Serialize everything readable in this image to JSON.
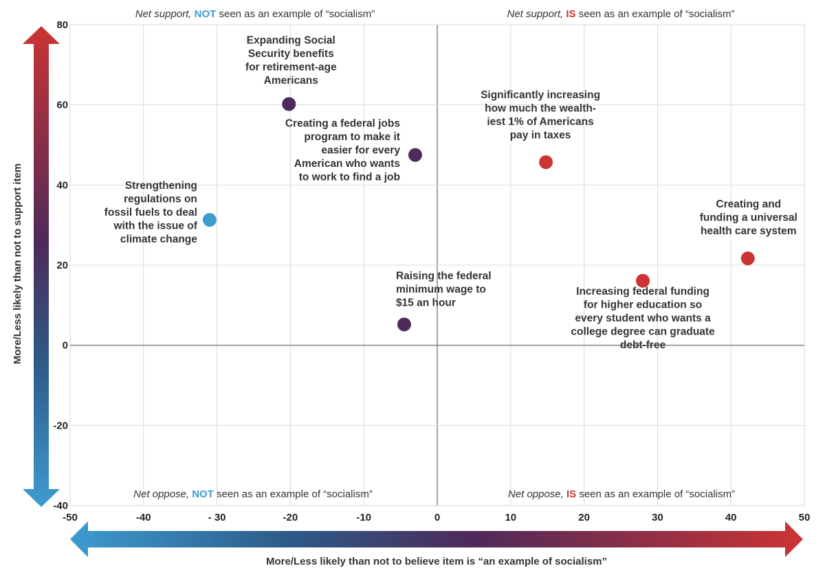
{
  "chart_data": {
    "type": "scatter",
    "xlabel": "More/Less likely than not to believe item is “an example of socialism”",
    "ylabel": "More/Less likely than not to support item",
    "xlim": [
      -50,
      50
    ],
    "ylim": [
      -40,
      80
    ],
    "x_ticks": [
      "-50",
      "-40",
      "- 30",
      "-20",
      "-10",
      "0",
      "10",
      "20",
      "30",
      "40",
      "50"
    ],
    "y_ticks": [
      "80",
      "60",
      "40",
      "20",
      "0",
      "-20",
      "-40"
    ],
    "grid": true,
    "quadrant_labels": {
      "top_left": {
        "lead": "Net support,",
        "key": "NOT",
        "rest": "seen as an example of “socialism”"
      },
      "top_right": {
        "lead": "Net support,",
        "key": "IS",
        "rest": "seen as an example of “socialism”"
      },
      "bottom_left": {
        "lead": "Net oppose,",
        "key": "NOT",
        "rest": "seen as an example of “socialism”"
      },
      "bottom_right": {
        "lead": "Net oppose,",
        "key": "IS",
        "rest": "seen as an example of “socialism”"
      }
    },
    "points": [
      {
        "x": -20.2,
        "y": 60.2,
        "color": "#4e2a5a",
        "label": [
          "Expanding Social",
          "Security benefits",
          "for retirement-age",
          "Americans"
        ]
      },
      {
        "x": -3,
        "y": 47.5,
        "color": "#4e2a5a",
        "label": [
          "Creating a federal jobs",
          "program to make it",
          "easier for every",
          "American who wants",
          "to work to find a job"
        ]
      },
      {
        "x": -31,
        "y": 31.3,
        "color": "#3d9bd0",
        "label": [
          "Strengthening",
          "regulations on",
          "fossil fuels to deal",
          "with the issue of",
          "climate change"
        ]
      },
      {
        "x": -4.5,
        "y": 5.2,
        "color": "#4e2a5a",
        "label": [
          "Raising the federal",
          "minimum wage to",
          "$15 an hour"
        ]
      },
      {
        "x": 14.8,
        "y": 45.7,
        "color": "#cc3433",
        "label": [
          "Significantly increasing",
          "how much the wealth-",
          "iest 1% of Americans",
          "pay in taxes"
        ]
      },
      {
        "x": 42.3,
        "y": 21.7,
        "color": "#cc3433",
        "label": [
          "Creating and",
          "funding a universal",
          "health care system"
        ]
      },
      {
        "x": 28,
        "y": 16.1,
        "color": "#cc3433",
        "label": [
          "Increasing federal funding",
          "for higher education so",
          "every student who wants a",
          "college degree can graduate",
          "debt-free"
        ]
      }
    ],
    "colors": {
      "blue": "#3d9bd0",
      "red": "#cc3433",
      "purple": "#4e2a5a",
      "grid": "#d9d9d9",
      "zero": "#8c8c8c"
    }
  }
}
